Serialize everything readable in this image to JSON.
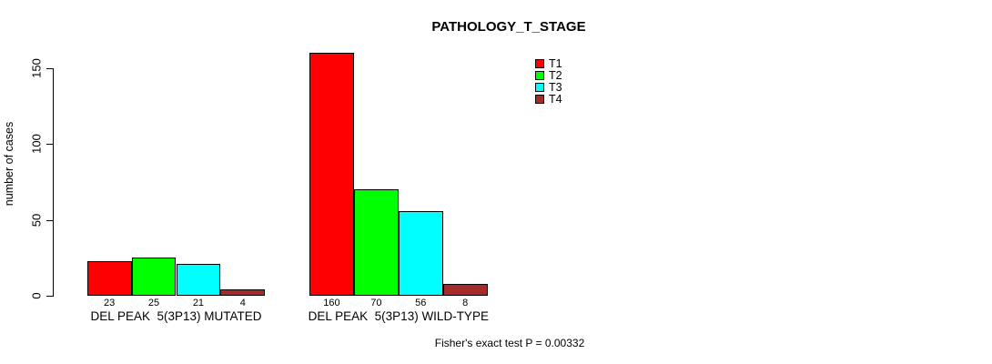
{
  "chart_data": {
    "type": "bar",
    "title": "PATHOLOGY_T_STAGE",
    "ylabel": "number of cases",
    "ylim": [
      0,
      150
    ],
    "yticks": [
      0,
      50,
      100,
      150
    ],
    "grid": false,
    "legend_position": "top-right",
    "categories": [
      "DEL PEAK  5(3P13) MUTATED",
      "DEL PEAK  5(3P13) WILD-TYPE"
    ],
    "series": [
      {
        "name": "T1",
        "color": "#FF0000",
        "values": [
          23,
          160
        ]
      },
      {
        "name": "T2",
        "color": "#00FF00",
        "values": [
          25,
          70
        ]
      },
      {
        "name": "T3",
        "color": "#00FFFF",
        "values": [
          21,
          56
        ]
      },
      {
        "name": "T4",
        "color": "#A52A2A",
        "values": [
          4,
          8
        ]
      }
    ],
    "bar_value_labels": [
      [
        "23",
        "25",
        "21",
        "4"
      ],
      [
        "160",
        "70",
        "56",
        "8"
      ]
    ],
    "annotation": "Fisher's exact test P = 0.00332"
  }
}
